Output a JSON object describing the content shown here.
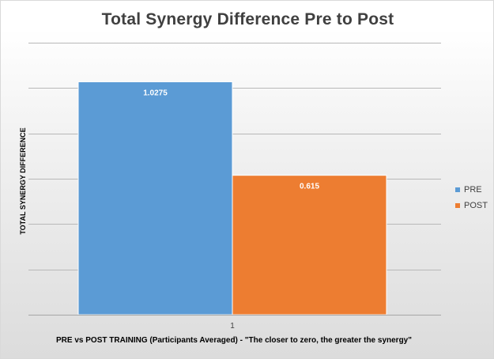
{
  "chart_data": {
    "type": "bar",
    "title": "Total Synergy Difference Pre to Post",
    "xlabel": "PRE vs POST TRAINING (Participants Averaged)  - \"The closer to zero, the greater the synergy\"",
    "ylabel": "TOTAL SYNERGY DIFFERENCE",
    "categories": [
      "1"
    ],
    "series": [
      {
        "name": "PRE",
        "values": [
          1.0275
        ],
        "color": "#5b9bd5",
        "label": "1.0275"
      },
      {
        "name": "POST",
        "values": [
          0.615
        ],
        "color": "#ed7d31",
        "label": "0.615"
      }
    ],
    "ylim": [
      0,
      1.2
    ],
    "grid": true,
    "y_tick_labels_shown": false,
    "legend_position": "right"
  }
}
